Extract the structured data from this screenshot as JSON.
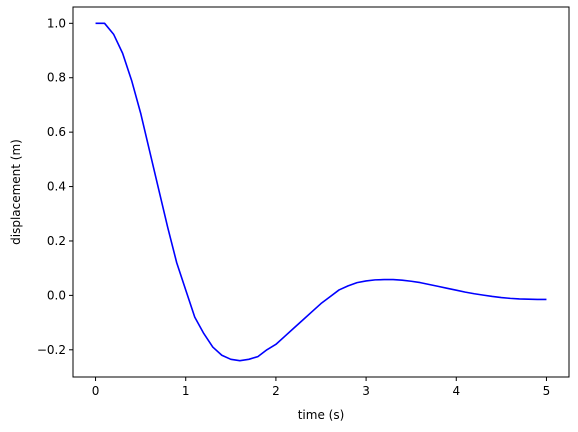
{
  "chart_data": {
    "type": "line",
    "title": "",
    "xlabel": "time (s)",
    "ylabel": "displacement (m)",
    "xlim": [
      -0.25,
      5.25
    ],
    "ylim": [
      -0.3,
      1.06
    ],
    "xticks": [
      0,
      1,
      2,
      3,
      4,
      5
    ],
    "xtick_labels": [
      "0",
      "1",
      "2",
      "3",
      "4",
      "5"
    ],
    "yticks": [
      -0.2,
      0.0,
      0.2,
      0.4,
      0.6,
      0.8,
      1.0
    ],
    "ytick_labels": [
      "−0.2",
      "0.0",
      "0.2",
      "0.4",
      "0.6",
      "0.8",
      "1.0"
    ],
    "grid": false,
    "legend": null,
    "series": [
      {
        "color": "#0000ff",
        "x": [
          0,
          0.1,
          0.2,
          0.3,
          0.4,
          0.5,
          0.6,
          0.7,
          0.8,
          0.9,
          1.0,
          1.1,
          1.2,
          1.3,
          1.4,
          1.5,
          1.6,
          1.7,
          1.8,
          1.9,
          2.0,
          2.1,
          2.2,
          2.3,
          2.4,
          2.5,
          2.6,
          2.7,
          2.8,
          2.9,
          3.0,
          3.1,
          3.2,
          3.3,
          3.4,
          3.5,
          3.6,
          3.7,
          3.8,
          3.9,
          4.0,
          4.1,
          4.2,
          4.3,
          4.4,
          4.5,
          4.6,
          4.7,
          4.8,
          4.9,
          5.0
        ],
        "y": [
          1.0,
          1.0,
          0.96,
          0.89,
          0.79,
          0.67,
          0.53,
          0.39,
          0.25,
          0.12,
          0.02,
          -0.08,
          -0.14,
          -0.19,
          -0.22,
          -0.235,
          -0.24,
          -0.235,
          -0.225,
          -0.2,
          -0.18,
          -0.15,
          -0.12,
          -0.09,
          -0.06,
          -0.03,
          -0.005,
          0.02,
          0.035,
          0.047,
          0.053,
          0.057,
          0.058,
          0.058,
          0.056,
          0.052,
          0.047,
          0.04,
          0.033,
          0.026,
          0.019,
          0.012,
          0.006,
          0.001,
          -0.004,
          -0.008,
          -0.011,
          -0.013,
          -0.014,
          -0.015,
          -0.015
        ]
      }
    ]
  }
}
